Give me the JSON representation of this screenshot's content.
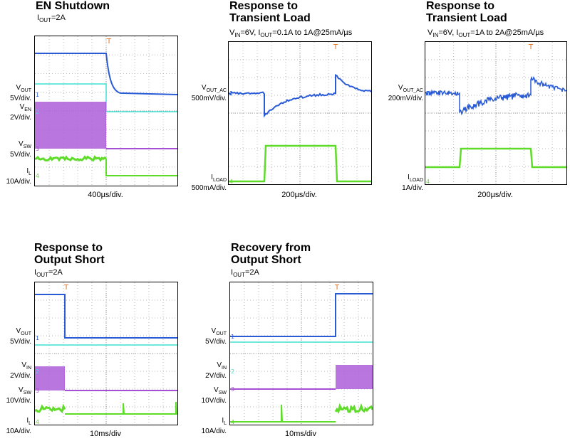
{
  "chart_data": [
    {
      "type": "line",
      "title": "EN Shutdown",
      "subtitle": "IOUT=2A",
      "xlabel": "400µs/div.",
      "grid": true,
      "series": [
        {
          "name": "VOUT 5V/div.",
          "color": "#2a5bd7"
        },
        {
          "name": "VEN 2V/div.",
          "color": "#3fe0d0"
        },
        {
          "name": "VSW 5V/div.",
          "color": "#a64fd6"
        },
        {
          "name": "IL 10A/div.",
          "color": "#5fdc2a"
        }
      ]
    },
    {
      "type": "line",
      "title": "Response to Transient Load",
      "subtitle": "VIN=6V, IOUT=0.1A to 1A@25mA/µs",
      "xlabel": "200µs/div.",
      "grid": true,
      "series": [
        {
          "name": "VOUT_AC 500mV/div.",
          "color": "#2a5bd7"
        },
        {
          "name": "ILOAD 500mA/div.",
          "color": "#5fdc2a"
        }
      ]
    },
    {
      "type": "line",
      "title": "Response to Transient Load",
      "subtitle": "VIN=6V, IOUT=1A to 2A@25mA/µs",
      "xlabel": "200µs/div.",
      "grid": true,
      "series": [
        {
          "name": "VOUT_AC 200mV/div.",
          "color": "#2a5bd7"
        },
        {
          "name": "ILOAD 1A/div.",
          "color": "#5fdc2a"
        }
      ]
    },
    {
      "type": "line",
      "title": "Response to Output Short",
      "subtitle": "IOUT=2A",
      "xlabel": "10ms/div",
      "grid": true,
      "series": [
        {
          "name": "VOUT 5V/div.",
          "color": "#2a5bd7"
        },
        {
          "name": "VIN 2V/div.",
          "color": "#3fe0d0"
        },
        {
          "name": "VSW 10V/div.",
          "color": "#a64fd6"
        },
        {
          "name": "IL 10A/div.",
          "color": "#5fdc2a"
        }
      ]
    },
    {
      "type": "line",
      "title": "Recovery from Output Short",
      "subtitle": "IOUT=2A",
      "xlabel": "10ms/div",
      "grid": true,
      "series": [
        {
          "name": "VOUT 5V/div.",
          "color": "#2a5bd7"
        },
        {
          "name": "VIN 2V/div.",
          "color": "#3fe0d0"
        },
        {
          "name": "VSW 10V/div.",
          "color": "#a64fd6"
        },
        {
          "name": "IL 10A/div.",
          "color": "#5fdc2a"
        }
      ]
    }
  ],
  "labels": {
    "p1": {
      "title1": "EN Shutdown",
      "sub_i": "I",
      "sub_out": "OUT",
      "sub_val": "=2A",
      "vout_v": "V",
      "vout_s": "OUT",
      "vout_div": "5V/div.",
      "ven_v": "V",
      "ven_s": "EN",
      "ven_div": "2V/div.",
      "vsw_v": "V",
      "vsw_s": "SW",
      "vsw_div": "5V/div.",
      "il_i": "I",
      "il_s": "L",
      "il_div": "10A/div.",
      "x": "400µs/div."
    },
    "p2": {
      "title1": "Response to",
      "title2": "Transient Load",
      "sub_a": "V",
      "sub_b": "IN",
      "sub_c": "=6V, I",
      "sub_d": "OUT",
      "sub_e": "=0.1A to 1A@25mA/µs",
      "vo_v": "V",
      "vo_s": "OUT_AC",
      "vo_div": "500mV/div.",
      "il_i": "I",
      "il_s": "LOAD",
      "il_div": "500mA/div.",
      "x": "200µs/div."
    },
    "p3": {
      "title1": "Response to",
      "title2": "Transient Load",
      "sub_a": "V",
      "sub_b": "IN",
      "sub_c": "=6V, I",
      "sub_d": "OUT",
      "sub_e": "=1A to 2A@25mA/µs",
      "vo_v": "V",
      "vo_s": "OUT_AC",
      "vo_div": "200mV/div.",
      "il_i": "I",
      "il_s": "LOAD",
      "il_div": "1A/div.",
      "x": "200µs/div."
    },
    "p4": {
      "title1": "Response to",
      "title2": "Output Short",
      "sub_i": "I",
      "sub_out": "OUT",
      "sub_val": "=2A",
      "vout_v": "V",
      "vout_s": "OUT",
      "vout_div": "5V/div.",
      "vin_v": "V",
      "vin_s": "IN",
      "vin_div": "2V/div.",
      "vsw_v": "V",
      "vsw_s": "SW",
      "vsw_div": "10V/div.",
      "il_i": "I",
      "il_s": "L",
      "il_div": "10A/div.",
      "x": "10ms/div"
    },
    "p5": {
      "title1": "Recovery from",
      "title2": "Output Short",
      "sub_i": "I",
      "sub_out": "OUT",
      "sub_val": "=2A",
      "vout_v": "V",
      "vout_s": "OUT",
      "vout_div": "5V/div.",
      "vin_v": "V",
      "vin_s": "IN",
      "vin_div": "2V/div.",
      "vsw_v": "V",
      "vsw_s": "SW",
      "vsw_div": "10V/div.",
      "il_i": "I",
      "il_s": "L",
      "il_div": "10A/div.",
      "x": "10ms/div"
    }
  },
  "colors": {
    "blue": "#2a5bd7",
    "cyan": "#3fe0d0",
    "purple": "#a64fd6",
    "green": "#5fdc2a",
    "grid": "#b8b8b8",
    "trigger": "#e07020"
  }
}
